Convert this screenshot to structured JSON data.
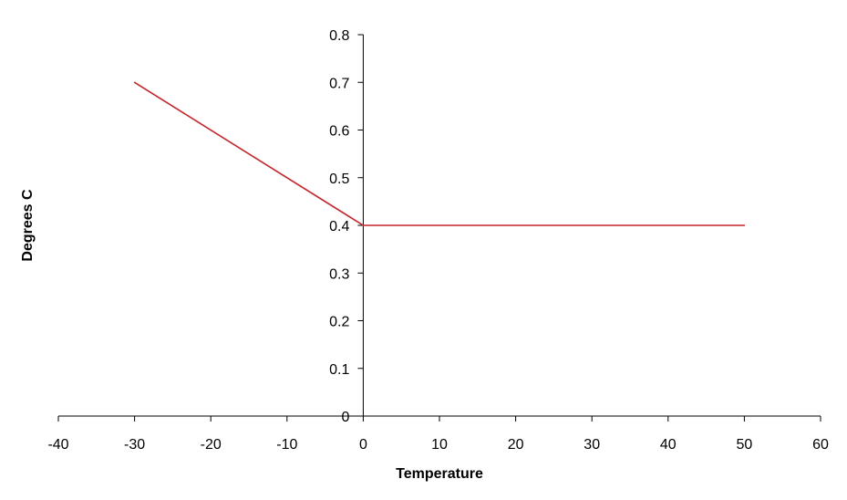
{
  "chart_data": {
    "type": "line",
    "title": "",
    "xlabel": "Temperature",
    "ylabel": "Degrees C",
    "xlim": [
      -40,
      60
    ],
    "ylim": [
      0,
      0.8
    ],
    "xticks": [
      -40,
      -30,
      -20,
      -10,
      0,
      10,
      20,
      30,
      40,
      50,
      60
    ],
    "yticks": [
      0,
      0.1,
      0.2,
      0.3,
      0.4,
      0.5,
      0.6,
      0.7,
      0.8
    ],
    "grid": false,
    "legend": "none",
    "series": [
      {
        "color": "#c0272d",
        "x": [
          -30,
          0,
          50
        ],
        "y": [
          0.7,
          0.4,
          0.4
        ]
      }
    ]
  }
}
